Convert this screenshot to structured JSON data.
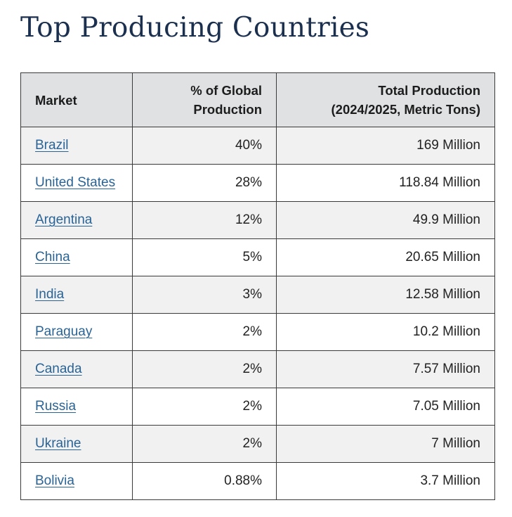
{
  "page": {
    "title": "Top Producing Countries"
  },
  "table": {
    "headers": {
      "market": "Market",
      "share_line1": "% of Global",
      "share_line2": "Production",
      "total_line1": "Total Production",
      "total_line2": "(2024/2025, Metric Tons)"
    },
    "rows": [
      {
        "market": "Brazil",
        "share": "40%",
        "total": "169 Million"
      },
      {
        "market": "United States",
        "share": "28%",
        "total": "118.84 Million"
      },
      {
        "market": "Argentina",
        "share": "12%",
        "total": "49.9 Million"
      },
      {
        "market": "China",
        "share": "5%",
        "total": "20.65 Million"
      },
      {
        "market": "India",
        "share": "3%",
        "total": "12.58 Million"
      },
      {
        "market": "Paraguay",
        "share": "2%",
        "total": "10.2 Million"
      },
      {
        "market": "Canada",
        "share": "2%",
        "total": "7.57 Million"
      },
      {
        "market": "Russia",
        "share": "2%",
        "total": "7.05 Million"
      },
      {
        "market": "Ukraine",
        "share": "2%",
        "total": "7 Million"
      },
      {
        "market": "Bolivia",
        "share": "0.88%",
        "total": "3.7 Million"
      }
    ]
  },
  "colors": {
    "title": "#1b2f4f",
    "link": "#2a6496",
    "header_bg": "#dfe1e3",
    "row_alt_bg": "#f1f1f1"
  }
}
